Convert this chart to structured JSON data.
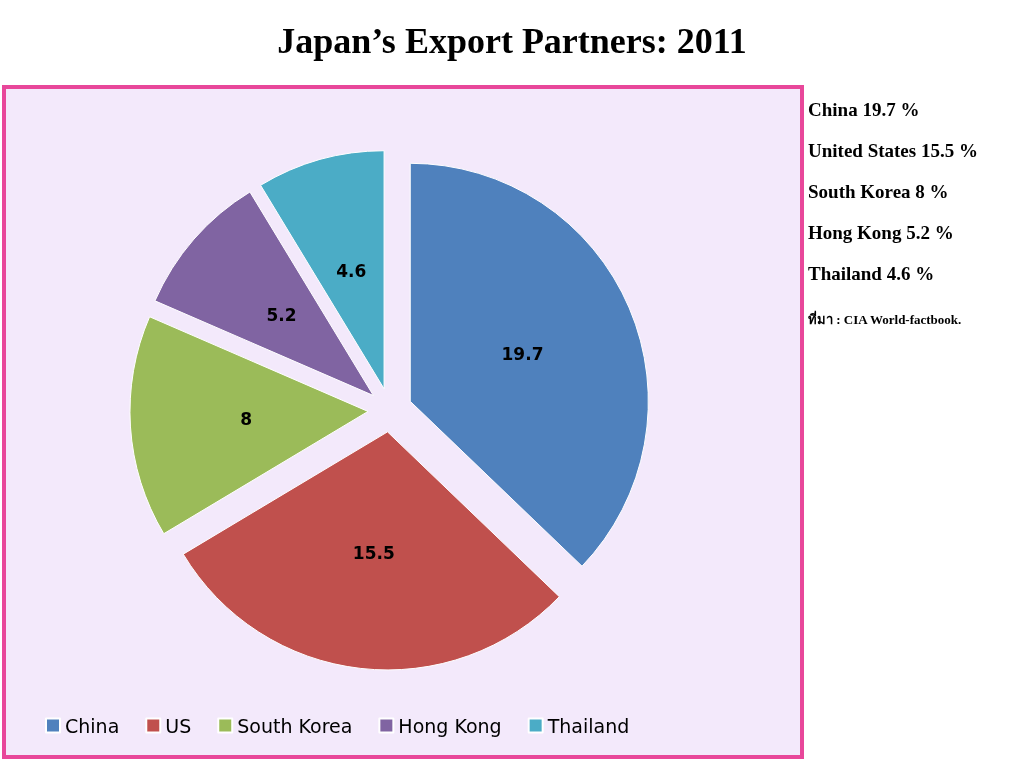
{
  "chart_data": {
    "type": "pie",
    "title": "Japan’s Export Partners: 2011",
    "categories": [
      "China",
      "US",
      "South Korea",
      "Hong Kong",
      "Thailand"
    ],
    "values": [
      19.7,
      15.5,
      8,
      5.2,
      4.6
    ],
    "colors": [
      "#4f81bd",
      "#c0504d",
      "#9bbb59",
      "#8064a2",
      "#4bacc6"
    ],
    "data_labels": true,
    "legend": "bottom",
    "annotations": [
      "China 19.7 %",
      "United States 15.5 %",
      "South Korea 8 %",
      "Hong Kong 5.2 %",
      "Thailand 4.6 %",
      "ที่มา : CIA World-factbook."
    ]
  }
}
